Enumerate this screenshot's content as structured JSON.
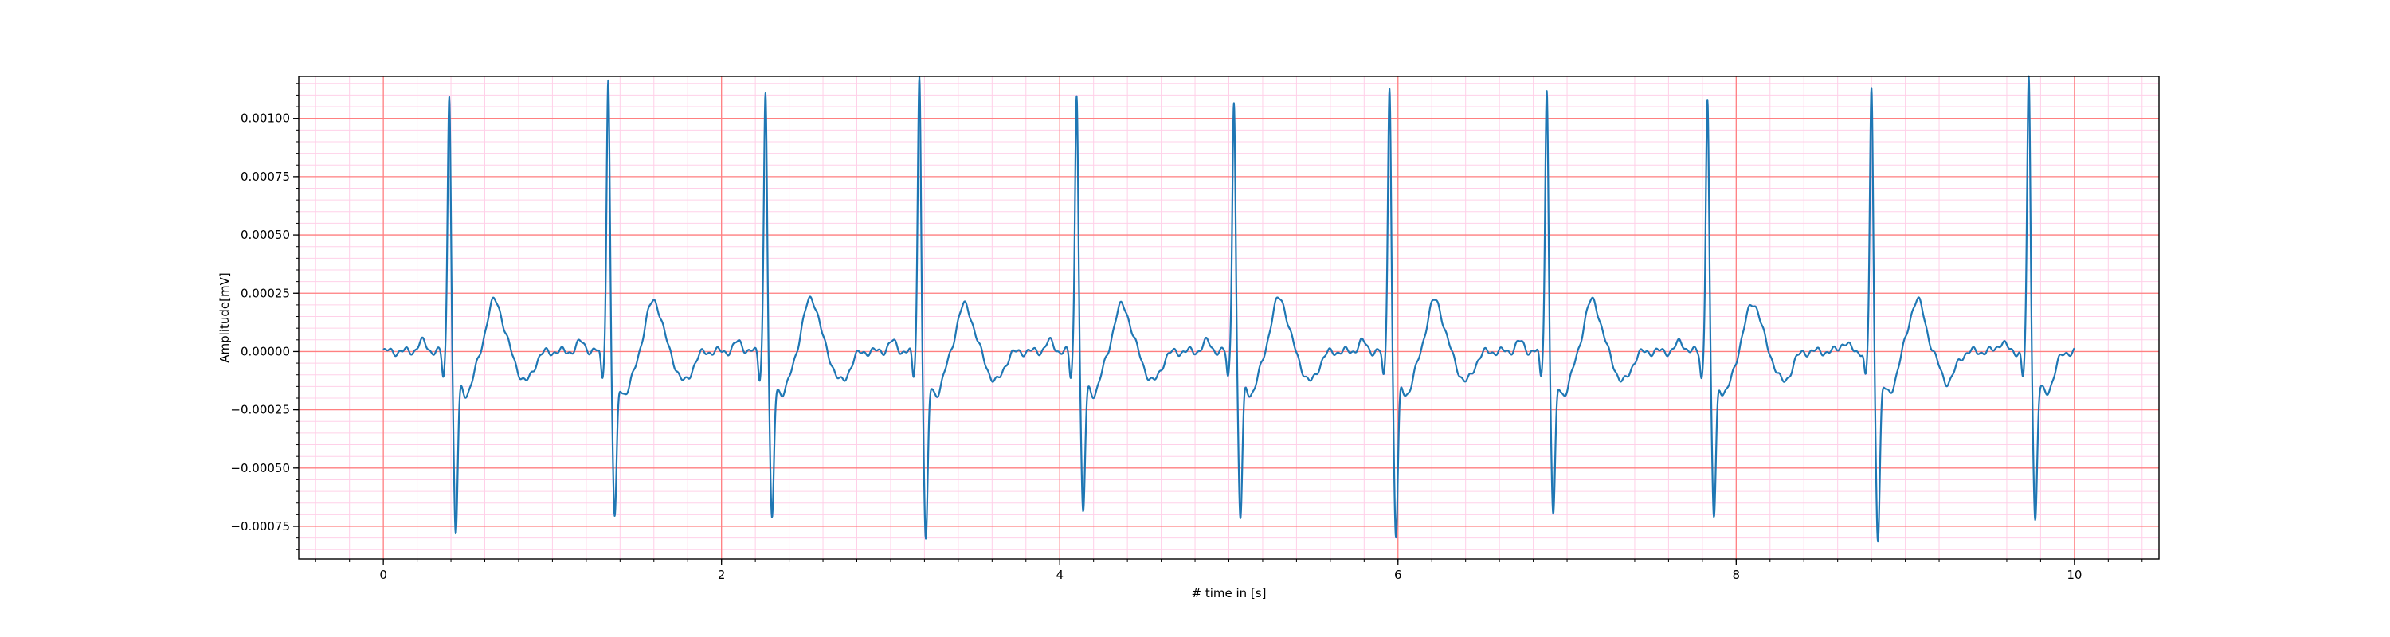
{
  "chart_data": {
    "type": "line",
    "title": "",
    "xlabel": "# time in [s]",
    "ylabel": "Amplitude[mV]",
    "xlim": [
      -0.5,
      10.5
    ],
    "ylim": [
      -0.00089,
      0.00118
    ],
    "xticks": [
      0,
      2,
      4,
      6,
      8,
      10
    ],
    "xtick_labels": [
      "0",
      "2",
      "4",
      "6",
      "8",
      "10"
    ],
    "yticks": [
      -0.00075,
      -0.0005,
      -0.00025,
      0.0,
      0.00025,
      0.0005,
      0.00075,
      0.001
    ],
    "ytick_labels": [
      "−0.00075",
      "−0.00050",
      "−0.00025",
      "0.00000",
      "0.00025",
      "0.00050",
      "0.00075",
      "0.00100"
    ],
    "grid": {
      "major": true,
      "minor": true,
      "major_color": "#ff8080",
      "minor_color": "#ffd0e8"
    },
    "legend": "none",
    "series_color": "#1f77b4",
    "beats": [
      {
        "r_time": 0.39,
        "r_peak": 0.00103,
        "s_min": -0.00077,
        "t_peak": 0.00022
      },
      {
        "r_time": 1.33,
        "r_peak": 0.00108,
        "s_min": -0.0007,
        "t_peak": 0.00022
      },
      {
        "r_time": 2.26,
        "r_peak": 0.00103,
        "s_min": -0.00071,
        "t_peak": 0.00023
      },
      {
        "r_time": 3.17,
        "r_peak": 0.0011,
        "s_min": -0.0008,
        "t_peak": 0.0002
      },
      {
        "r_time": 4.1,
        "r_peak": 0.00103,
        "s_min": -0.00068,
        "t_peak": 0.0002
      },
      {
        "r_time": 5.03,
        "r_peak": 0.001,
        "s_min": -0.0007,
        "t_peak": 0.00023
      },
      {
        "r_time": 5.95,
        "r_peak": 0.00106,
        "s_min": -0.00078,
        "t_peak": 0.00022
      },
      {
        "r_time": 6.88,
        "r_peak": 0.00104,
        "s_min": -0.00069,
        "t_peak": 0.00022
      },
      {
        "r_time": 7.83,
        "r_peak": 0.001,
        "s_min": -0.00069,
        "t_peak": 0.00021
      },
      {
        "r_time": 8.8,
        "r_peak": 0.00104,
        "s_min": -0.00078,
        "t_peak": 0.00022
      },
      {
        "r_time": 9.73,
        "r_peak": 0.00109,
        "s_min": -0.0007,
        "t_peak": null
      }
    ],
    "signal_start": 0.0,
    "signal_end": 10.0
  }
}
